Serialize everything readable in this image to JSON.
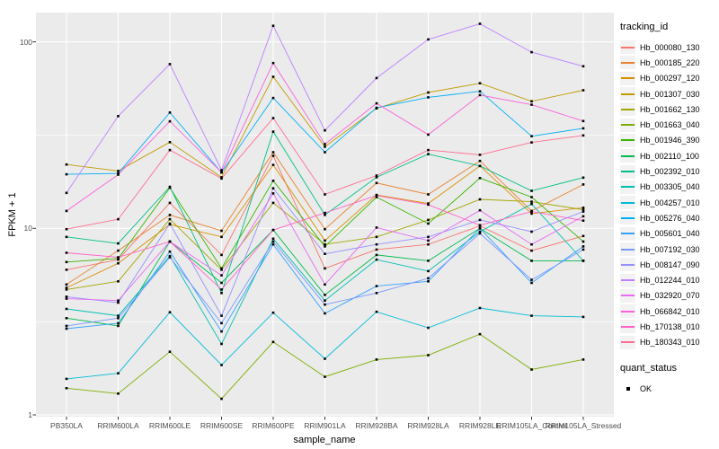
{
  "figure": {
    "background": "#ffffff",
    "panel_background": "#ebebeb",
    "grid_color": "#ffffff",
    "tick_color": "#333333",
    "tick_label_color": "#4d4d4d",
    "point_color": "#000000"
  },
  "chart_data": {
    "type": "line",
    "title": "",
    "xlabel": "sample_name",
    "ylabel": "FPKM + 1",
    "y_scale": "log10",
    "y_tick_labels": [
      "1",
      "10",
      "100"
    ],
    "y_ticks": [
      1,
      10,
      100
    ],
    "y_minor_ticks": [
      3.1623,
      31.623
    ],
    "ylim": [
      0.97,
      143
    ],
    "grid": true,
    "legend_position": "right",
    "point_shape": "filled-square",
    "x_categories": [
      "PB350LA",
      "RRIM600LA",
      "RRIM600LE",
      "RRIM600SE",
      "RRIM600PE",
      "RRIM901LA",
      "RRIM928BA",
      "RRIM928LA",
      "RRIM928LE",
      "RRIM105LA_Control",
      "RRIM105LA_Stressed"
    ],
    "series": [
      {
        "name": "Hb_000080_130",
        "color": "#F8766D",
        "values": [
          6.0,
          6.8,
          13.7,
          7.2,
          24.5,
          6.1,
          7.7,
          8.2,
          10.3,
          7.6,
          9.1
        ]
      },
      {
        "name": "Hb_000185_220",
        "color": "#EA8331",
        "values": [
          5.0,
          7.6,
          11.8,
          9.7,
          25.6,
          9.9,
          17.5,
          15.2,
          23.0,
          12.4,
          17.2
        ]
      },
      {
        "name": "Hb_000297_120",
        "color": "#D89000",
        "values": [
          4.8,
          6.5,
          10.5,
          9.0,
          21.9,
          8.6,
          15.1,
          13.6,
          21.6,
          12.0,
          12.9
        ]
      },
      {
        "name": "Hb_001307_030",
        "color": "#C09B00",
        "values": [
          22.0,
          20.3,
          29.0,
          18.8,
          65.0,
          27.4,
          44.0,
          53.5,
          60.0,
          48.0,
          55.0
        ]
      },
      {
        "name": "Hb_001662_130",
        "color": "#A3A500",
        "values": [
          4.7,
          5.2,
          11.2,
          6.0,
          13.7,
          8.2,
          9.0,
          11.1,
          14.3,
          13.9,
          12.6
        ]
      },
      {
        "name": "Hb_001663_040",
        "color": "#7CAE00",
        "values": [
          1.39,
          1.3,
          2.18,
          1.22,
          2.46,
          1.6,
          1.98,
          2.09,
          2.71,
          1.75,
          1.98
        ]
      },
      {
        "name": "Hb_001946_390",
        "color": "#39B600",
        "values": [
          6.6,
          6.9,
          16.5,
          6.1,
          18.0,
          8.0,
          14.7,
          10.6,
          18.6,
          14.7,
          8.5
        ]
      },
      {
        "name": "Hb_002110_100",
        "color": "#00BB4E",
        "values": [
          3.3,
          3.0,
          8.5,
          5.1,
          9.8,
          4.4,
          7.2,
          6.7,
          10.0,
          6.7,
          6.7
        ]
      },
      {
        "name": "Hb_002392_010",
        "color": "#00C087",
        "values": [
          9.0,
          8.3,
          16.7,
          4.5,
          33.0,
          11.8,
          18.8,
          25.0,
          21.6,
          15.9,
          18.7
        ]
      },
      {
        "name": "Hb_003305_040",
        "color": "#00C0B2",
        "values": [
          3.7,
          3.4,
          7.1,
          2.4,
          8.8,
          4.1,
          6.8,
          5.9,
          9.6,
          13.5,
          6.7
        ]
      },
      {
        "name": "Hb_004257_010",
        "color": "#00BCD8",
        "values": [
          1.56,
          1.67,
          3.55,
          1.85,
          3.53,
          2.0,
          3.57,
          2.93,
          3.74,
          3.4,
          3.35
        ]
      },
      {
        "name": "Hb_005276_040",
        "color": "#00B0F6",
        "values": [
          19.5,
          19.7,
          41.8,
          19.9,
          50.0,
          25.6,
          44.3,
          50.4,
          54.3,
          31.2,
          34.4
        ]
      },
      {
        "name": "Hb_005601_040",
        "color": "#35A2FF",
        "values": [
          2.9,
          3.1,
          7.5,
          2.8,
          8.2,
          3.5,
          4.9,
          5.2,
          10.0,
          5.1,
          8.0
        ]
      },
      {
        "name": "Hb_007192_030",
        "color": "#7997FF",
        "values": [
          3.0,
          3.3,
          7.0,
          3.1,
          8.5,
          3.9,
          4.5,
          5.4,
          9.4,
          5.3,
          7.7
        ]
      },
      {
        "name": "Hb_008147_090",
        "color": "#9590FF",
        "values": [
          4.3,
          4.0,
          10.6,
          3.4,
          16.4,
          7.3,
          8.2,
          9.0,
          11.1,
          9.6,
          12.3
        ]
      },
      {
        "name": "Hb_012244_010",
        "color": "#BF80FF",
        "values": [
          15.5,
          40.0,
          76.0,
          20.5,
          122.0,
          33.5,
          64.0,
          103.0,
          125.0,
          88.0,
          74.0
        ]
      },
      {
        "name": "Hb_032920_070",
        "color": "#E76BF3",
        "values": [
          4.2,
          4.1,
          8.5,
          5.6,
          15.4,
          5.0,
          10.1,
          8.6,
          12.5,
          8.2,
          11.6
        ]
      },
      {
        "name": "Hb_066842_010",
        "color": "#FA62DB",
        "values": [
          12.4,
          19.4,
          37.5,
          20.0,
          77.0,
          28.3,
          46.8,
          31.8,
          51.8,
          46.0,
          37.6
        ]
      },
      {
        "name": "Hb_170138_010",
        "color": "#FF61C9",
        "values": [
          7.4,
          7.0,
          8.5,
          4.7,
          9.8,
          12.1,
          15.0,
          13.4,
          10.4,
          12.3,
          11.0
        ]
      },
      {
        "name": "Hb_180343_010",
        "color": "#FF6C91",
        "values": [
          9.9,
          11.2,
          26.3,
          18.5,
          39.0,
          15.2,
          19.2,
          26.3,
          24.8,
          28.9,
          31.5
        ]
      }
    ],
    "legend": {
      "color_legend_title": "tracking_id",
      "shape_legend_title": "quant_status",
      "shape_entries": [
        {
          "label": "OK"
        }
      ]
    }
  }
}
